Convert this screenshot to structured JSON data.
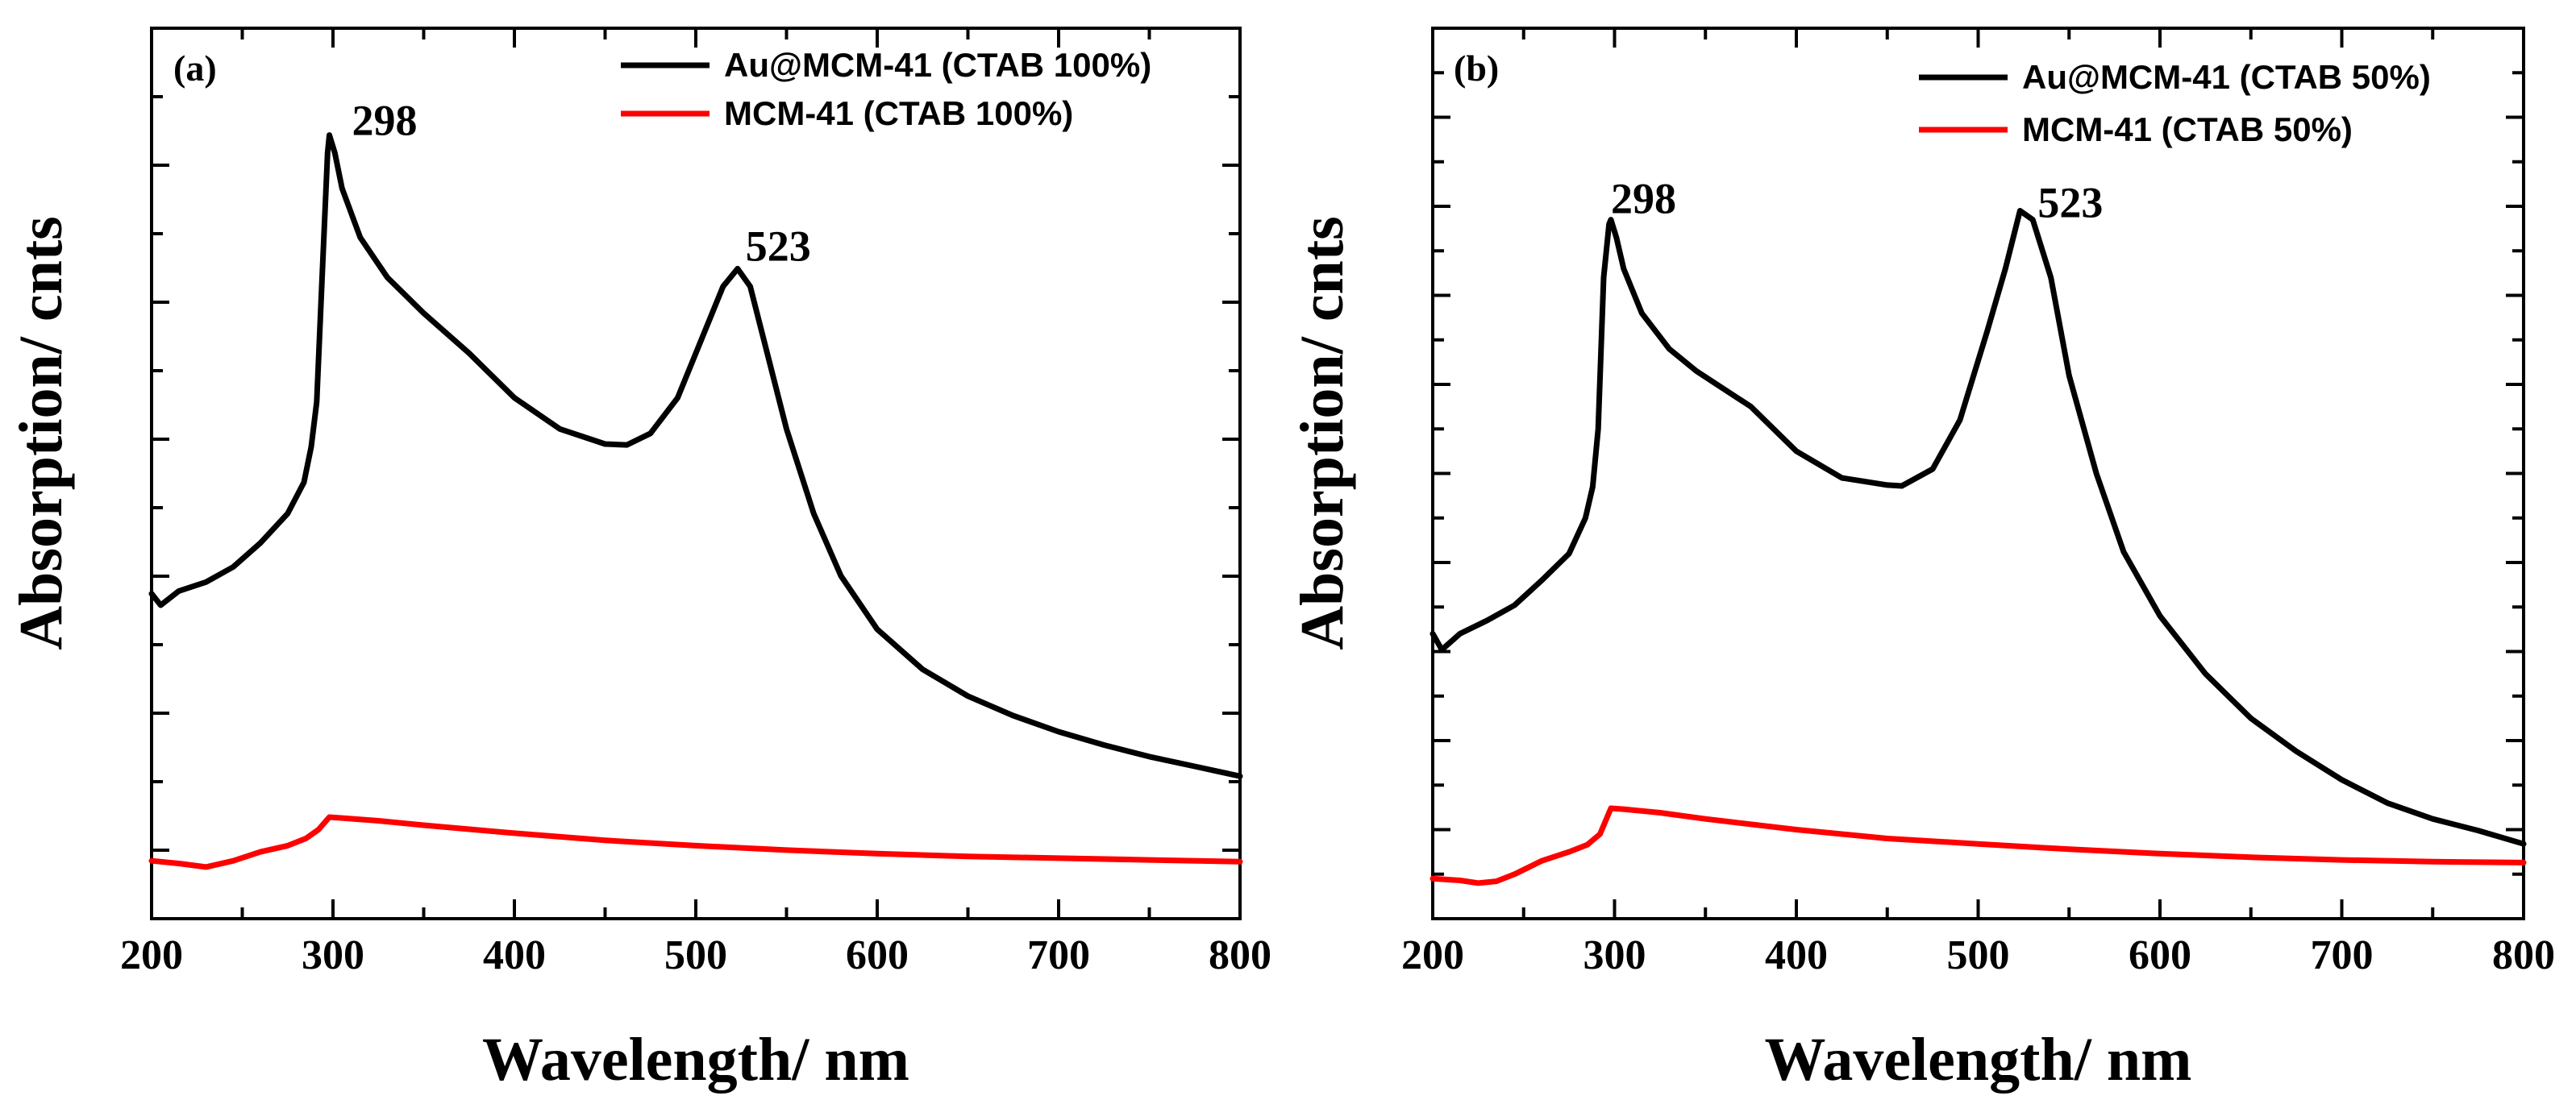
{
  "chart_data": [
    {
      "type": "line",
      "panel_label": "(a)",
      "xlabel": "Wavelength/ nm",
      "ylabel": "Absorption/ cnts",
      "xlim": [
        200,
        800
      ],
      "ylim": [
        0,
        100
      ],
      "x_ticks": [
        200,
        300,
        400,
        500,
        600,
        700,
        800
      ],
      "y_tick_labels_shown": false,
      "legend_position": "top-right",
      "series": [
        {
          "name": "Au@MCM-41 (CTAB 100%)",
          "color": "#000000",
          "x": [
            200,
            205,
            215,
            230,
            245,
            260,
            275,
            284,
            288,
            291,
            294,
            297,
            298,
            301,
            305,
            315,
            330,
            350,
            375,
            400,
            425,
            450,
            462,
            475,
            490,
            505,
            515,
            523,
            530,
            540,
            550,
            565,
            580,
            600,
            625,
            650,
            675,
            700,
            725,
            750,
            775,
            800
          ],
          "y": [
            36.5,
            35.2,
            36.8,
            37.8,
            39.5,
            42.2,
            45.5,
            49,
            53,
            58,
            72,
            86,
            88,
            86,
            82,
            76.5,
            72,
            68,
            63.5,
            58.5,
            55,
            53.3,
            53.2,
            54.5,
            58.5,
            66,
            71,
            73,
            71,
            63,
            55,
            45.5,
            38.5,
            32.5,
            28,
            25,
            22.8,
            21,
            19.5,
            18.2,
            17.1,
            16
          ]
        },
        {
          "name": "MCM-41 (CTAB 100%)",
          "color": "#ff0000",
          "x": [
            200,
            215,
            230,
            245,
            260,
            275,
            285,
            292,
            298,
            305,
            325,
            350,
            400,
            450,
            500,
            550,
            600,
            650,
            700,
            750,
            800
          ],
          "y": [
            6.5,
            6.2,
            5.8,
            6.5,
            7.5,
            8.2,
            9.0,
            10.0,
            11.4,
            11.3,
            11.0,
            10.5,
            9.6,
            8.8,
            8.2,
            7.7,
            7.3,
            7.0,
            6.8,
            6.6,
            6.4
          ]
        }
      ],
      "annotations": [
        {
          "text": "298",
          "x": 298,
          "y": 88
        },
        {
          "text": "523",
          "x": 523,
          "y": 73
        }
      ]
    },
    {
      "type": "line",
      "panel_label": "(b)",
      "xlabel": "Wavelength/ nm",
      "ylabel": "Absorption/ cnts",
      "xlim": [
        200,
        800
      ],
      "ylim": [
        0,
        100
      ],
      "x_ticks": [
        200,
        300,
        400,
        500,
        600,
        700,
        800
      ],
      "y_tick_labels_shown": false,
      "legend_position": "top-right",
      "series": [
        {
          "name": "Au@MCM-41 (CTAB 50%)",
          "color": "#000000",
          "x": [
            200,
            205,
            215,
            230,
            245,
            260,
            275,
            284,
            288,
            291,
            294,
            297,
            298,
            301,
            305,
            315,
            330,
            345,
            375,
            400,
            425,
            450,
            458,
            475,
            490,
            505,
            515,
            523,
            530,
            540,
            550,
            565,
            580,
            600,
            625,
            650,
            675,
            700,
            725,
            750,
            775,
            800
          ],
          "y": [
            32,
            30.2,
            32,
            33.5,
            35.2,
            38,
            41,
            45,
            48.5,
            55,
            72,
            78,
            78.5,
            76.5,
            73,
            68,
            64,
            61.5,
            57.5,
            52.5,
            49.5,
            48.7,
            48.6,
            50.5,
            56,
            66,
            73,
            79.5,
            78.5,
            72,
            61,
            50,
            41.2,
            34,
            27.5,
            22.5,
            18.8,
            15.6,
            13.0,
            11.2,
            9.9,
            8.4
          ]
        },
        {
          "name": "MCM-41 (CTAB 50%)",
          "color": "#ff0000",
          "x": [
            200,
            215,
            225,
            235,
            245,
            260,
            275,
            285,
            292,
            298,
            305,
            325,
            350,
            400,
            450,
            500,
            550,
            600,
            650,
            700,
            750,
            800
          ],
          "y": [
            4.5,
            4.3,
            4.0,
            4.2,
            5.0,
            6.5,
            7.5,
            8.3,
            9.5,
            12.4,
            12.3,
            11.9,
            11.2,
            10.0,
            9.0,
            8.4,
            7.8,
            7.3,
            6.9,
            6.6,
            6.4,
            6.3
          ]
        }
      ],
      "annotations": [
        {
          "text": "298",
          "x": 298,
          "y": 78.5
        },
        {
          "text": "523",
          "x": 523,
          "y": 79.5
        }
      ]
    }
  ]
}
